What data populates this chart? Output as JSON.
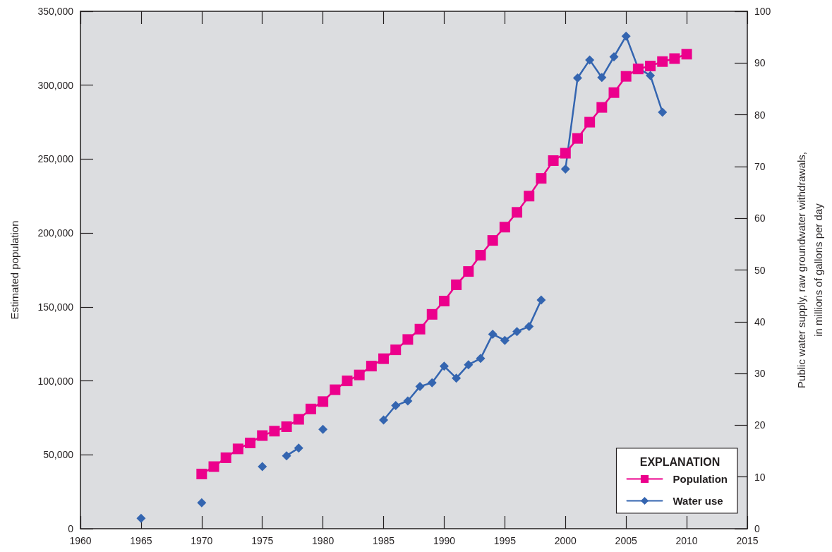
{
  "chart_data": {
    "type": "line",
    "ylabel": "Estimated population",
    "y2label": "Public water supply, raw groundwater withdrawals,\nin millions of gallons per day",
    "legend_title": "EXPLANATION",
    "xlim": [
      1960,
      2015
    ],
    "xticks": [
      1960,
      1965,
      1970,
      1975,
      1980,
      1985,
      1990,
      1995,
      2000,
      2005,
      2010,
      2015
    ],
    "ylim": [
      0,
      350000
    ],
    "yticks": [
      0,
      {
        "value": 50000,
        "label": "50,000"
      },
      {
        "value": 100000,
        "label": "100,000"
      },
      {
        "value": 150000,
        "label": "150,000"
      },
      {
        "value": 200000,
        "label": "200,000"
      },
      {
        "value": 250000,
        "label": "250,000"
      },
      {
        "value": 300000,
        "label": "300,000"
      },
      {
        "value": 350000,
        "label": "350,000"
      }
    ],
    "y2lim": [
      0,
      100
    ],
    "y2ticks": [
      0,
      10,
      20,
      30,
      40,
      50,
      60,
      70,
      80,
      90,
      100
    ],
    "grid": false,
    "legend": "bottom right",
    "line_style": "solid",
    "series": [
      {
        "name": "Population",
        "color": "#ec008c",
        "marker": "square",
        "x": [
          1970,
          1971,
          1972,
          1973,
          1974,
          1975,
          1976,
          1977,
          1978,
          1979,
          1980,
          1981,
          1982,
          1983,
          1984,
          1985,
          1986,
          1987,
          1988,
          1989,
          1990,
          1991,
          1992,
          1993,
          1994,
          1995,
          1996,
          1997,
          1998,
          1999,
          2000,
          2001,
          2002,
          2003,
          2004,
          2005,
          2006,
          2007,
          2008,
          2009,
          2010
        ],
        "values": [
          37000,
          42000,
          48000,
          54000,
          58000,
          63000,
          66000,
          69000,
          74000,
          81000,
          86000,
          94000,
          100000,
          104000,
          110000,
          115000,
          121000,
          128000,
          135000,
          145000,
          154000,
          165000,
          174000,
          185000,
          195000,
          204000,
          214000,
          225000,
          237000,
          249000,
          254000,
          264000,
          275000,
          285000,
          295000,
          306000,
          311000,
          313000,
          316000,
          318000,
          321000
        ]
      },
      {
        "name": "Water use",
        "color": "#3465b0",
        "marker": "diamond",
        "axis": "y2",
        "x": [
          1965,
          1966,
          1967,
          1968,
          1969,
          1970,
          1971,
          1972,
          1973,
          1974,
          1975,
          1976,
          1977,
          1978,
          1979,
          1980,
          1981,
          1982,
          1983,
          1984,
          1985,
          1986,
          1987,
          1988,
          1989,
          1990,
          1991,
          1992,
          1993,
          1994,
          1995,
          1996,
          1997,
          1998,
          1999,
          2000,
          2001,
          2002,
          2003,
          2004,
          2005,
          2006,
          2007,
          2008
        ],
        "values": [
          2,
          null,
          null,
          null,
          null,
          5,
          null,
          null,
          null,
          null,
          12,
          null,
          14.1,
          15.6,
          null,
          19.2,
          null,
          null,
          null,
          null,
          21,
          23.8,
          24.7,
          27.5,
          28.2,
          31.4,
          29.1,
          31.7,
          32.9,
          37.6,
          36.4,
          38.1,
          39.1,
          44.2,
          null,
          69.5,
          87.1,
          90.6,
          87.2,
          91.2,
          95.2,
          89,
          87.6,
          80.5
        ]
      }
    ]
  }
}
